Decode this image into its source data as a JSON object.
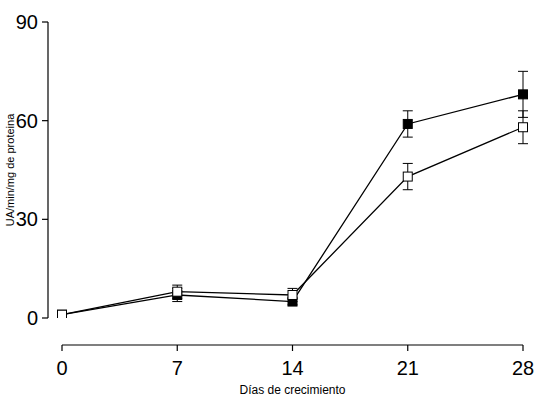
{
  "chart_data": {
    "type": "line",
    "y_label": "UA/min/mg de proteina",
    "x_label": "Días de crecimiento",
    "x": [
      0,
      7,
      14,
      21,
      28
    ],
    "xlim": [
      0,
      28
    ],
    "xticks": [
      0,
      7,
      14,
      21,
      28
    ],
    "ylim": [
      0,
      90
    ],
    "yticks": [
      0,
      30,
      60,
      90
    ],
    "grid": false,
    "series": [
      {
        "color": "#000000",
        "marker": "square",
        "line_style": "solid",
        "values": [
          1,
          7,
          5,
          59,
          68
        ],
        "errors": [
          1,
          2,
          1,
          4,
          7
        ]
      },
      {
        "color": "#000000",
        "marker": "square-open",
        "line_style": "solid",
        "values": [
          1,
          8,
          7,
          43,
          58
        ],
        "errors": [
          1,
          2,
          2,
          4,
          5
        ]
      }
    ]
  }
}
